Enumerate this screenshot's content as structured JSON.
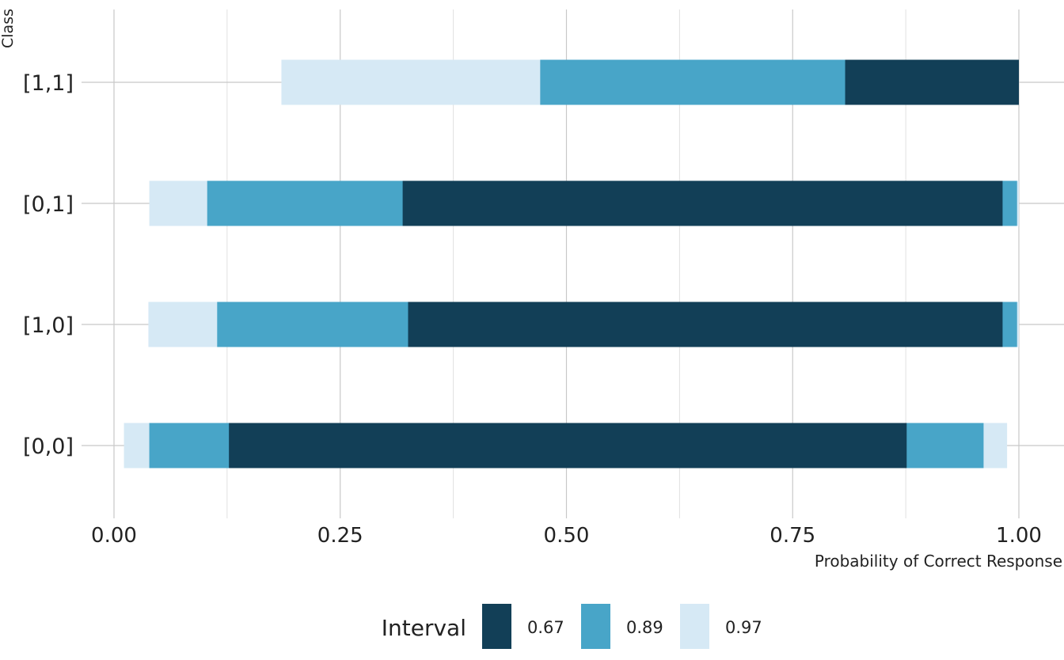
{
  "chart_data": {
    "type": "bar",
    "orientation": "horizontal",
    "stacked_intervals": true,
    "xlabel": "Probability of Correct Response",
    "ylabel": "Class",
    "xlim": [
      0,
      1
    ],
    "x_ticks": [
      "0.00",
      "0.25",
      "0.50",
      "0.75",
      "1.00"
    ],
    "x_tick_values": [
      0,
      0.25,
      0.5,
      0.75,
      1
    ],
    "categories": [
      "[1,1]",
      "[0,1]",
      "[1,0]",
      "[0,0]"
    ],
    "grid": true,
    "legend": {
      "title": "Interval",
      "placement": "bottom",
      "entries": [
        "0.67",
        "0.89",
        "0.97"
      ]
    },
    "series": [
      {
        "name": "0.97",
        "color": "#d6e9f5",
        "lower": [
          0.185,
          0.039,
          0.038,
          0.011
        ],
        "upper": [
          1.0,
          1.0,
          1.0,
          0.987
        ]
      },
      {
        "name": "0.89",
        "color": "#48a5c8",
        "lower": [
          0.471,
          0.103,
          0.114,
          0.039
        ],
        "upper": [
          1.0,
          0.998,
          0.998,
          0.961
        ]
      },
      {
        "name": "0.67",
        "color": "#123f57",
        "lower": [
          0.808,
          0.319,
          0.325,
          0.127
        ],
        "upper": [
          1.0,
          0.982,
          0.982,
          0.876
        ]
      }
    ]
  }
}
